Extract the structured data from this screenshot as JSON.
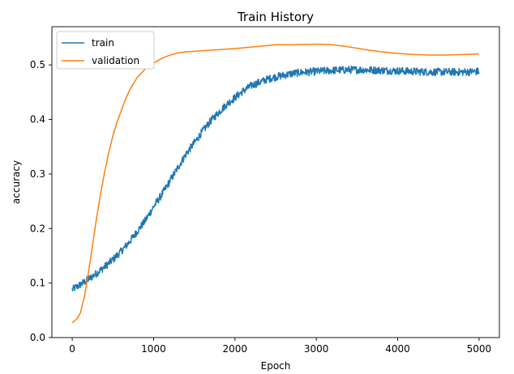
{
  "chart_data": {
    "type": "line",
    "title": "Train History",
    "xlabel": "Epoch",
    "ylabel": "accuracy",
    "xlim": [
      -250,
      5250
    ],
    "ylim": [
      0.0,
      0.57
    ],
    "xticks": [
      0,
      1000,
      2000,
      3000,
      4000,
      5000
    ],
    "xtick_labels": [
      "0",
      "1000",
      "2000",
      "3000",
      "4000",
      "5000"
    ],
    "yticks": [
      0.0,
      0.1,
      0.2,
      0.3,
      0.4,
      0.5
    ],
    "ytick_labels": [
      "0.0",
      "0.1",
      "0.2",
      "0.3",
      "0.4",
      "0.5"
    ],
    "grid": false,
    "legend_position": "top-left",
    "series": [
      {
        "name": "train",
        "color": "#1f77b4",
        "noise": 0.007,
        "x": [
          0,
          100,
          200,
          300,
          400,
          500,
          600,
          700,
          800,
          900,
          1000,
          1100,
          1200,
          1300,
          1400,
          1500,
          1600,
          1700,
          1800,
          1900,
          2000,
          2100,
          2200,
          2300,
          2400,
          2500,
          2600,
          2700,
          2800,
          2900,
          3000,
          3200,
          3400,
          3600,
          3800,
          4000,
          4200,
          4400,
          4600,
          4800,
          5000
        ],
        "y": [
          0.088,
          0.097,
          0.107,
          0.118,
          0.13,
          0.143,
          0.158,
          0.175,
          0.195,
          0.215,
          0.24,
          0.262,
          0.287,
          0.312,
          0.337,
          0.357,
          0.378,
          0.397,
          0.413,
          0.428,
          0.44,
          0.452,
          0.462,
          0.468,
          0.474,
          0.478,
          0.481,
          0.484,
          0.486,
          0.487,
          0.488,
          0.49,
          0.491,
          0.491,
          0.49,
          0.489,
          0.488,
          0.487,
          0.487,
          0.487,
          0.488
        ]
      },
      {
        "name": "validation",
        "color": "#ff7f0e",
        "noise": 0,
        "x": [
          0,
          60,
          100,
          150,
          200,
          250,
          300,
          350,
          400,
          450,
          500,
          550,
          600,
          650,
          700,
          750,
          800,
          900,
          1000,
          1100,
          1200,
          1300,
          1400,
          1500,
          1700,
          2000,
          2300,
          2500,
          2700,
          3000,
          3200,
          3400,
          3600,
          3800,
          4000,
          4200,
          4400,
          4600,
          4800,
          5000
        ],
        "y": [
          0.027,
          0.035,
          0.045,
          0.075,
          0.12,
          0.17,
          0.22,
          0.265,
          0.305,
          0.34,
          0.37,
          0.395,
          0.415,
          0.435,
          0.452,
          0.465,
          0.477,
          0.493,
          0.503,
          0.512,
          0.518,
          0.522,
          0.524,
          0.525,
          0.527,
          0.53,
          0.534,
          0.537,
          0.537,
          0.538,
          0.537,
          0.533,
          0.528,
          0.524,
          0.521,
          0.519,
          0.518,
          0.518,
          0.519,
          0.52
        ]
      }
    ]
  }
}
